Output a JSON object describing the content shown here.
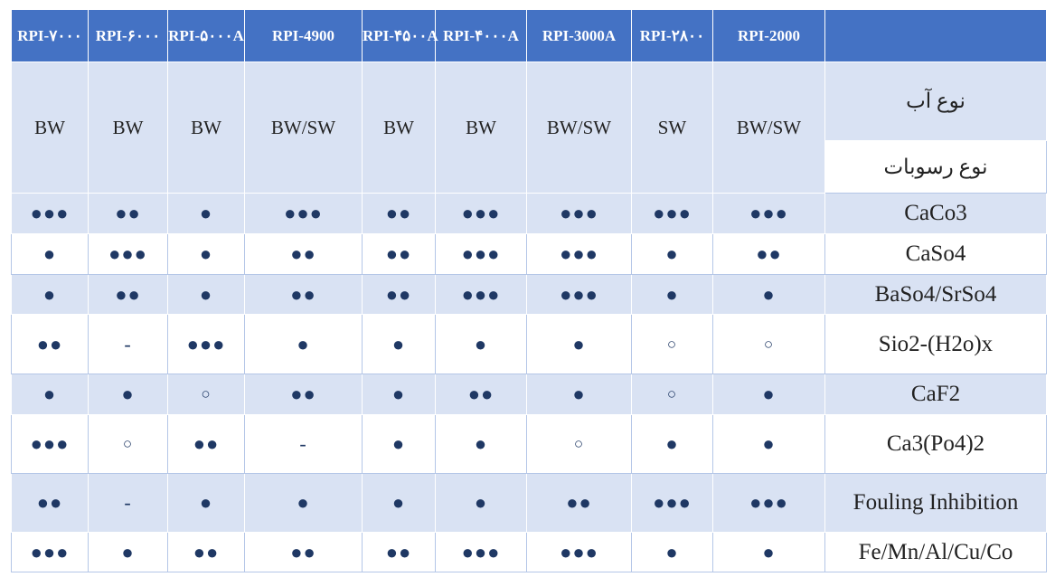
{
  "table": {
    "header": [
      "RPI-۷۰۰۰",
      "RPI-۶۰۰۰",
      "RPI-۵۰۰۰A",
      "RPI-4900",
      "RPI-۴۵۰۰A",
      "RPI-۴۰۰۰A",
      "RPI-3000A",
      "RPI-۲۸۰۰",
      "RPI-2000"
    ],
    "water_label": "نوع آب",
    "sediment_label": "نوع رسوبات",
    "water_types": [
      "BW",
      "BW",
      "BW",
      "BW/SW",
      "BW",
      "BW",
      "BW/SW",
      "SW",
      "BW/SW"
    ],
    "rows": [
      {
        "label": "CaCo3",
        "cells": [
          "●●●",
          "●●",
          "●",
          "●●●",
          "●●",
          "●●●",
          "●●●",
          "●●●",
          "●●●"
        ]
      },
      {
        "label": "CaSo4",
        "cells": [
          "●",
          "●●●",
          "●",
          "●●",
          "●●",
          "●●●",
          "●●●",
          "●",
          "●●"
        ]
      },
      {
        "label": "BaSo4/SrSo4",
        "cells": [
          "●",
          "●●",
          "●",
          "●●",
          "●●",
          "●●●",
          "●●●",
          "●",
          "●"
        ]
      },
      {
        "label": "Sio2-(H2o)x",
        "cells": [
          "●●",
          "-",
          "●●●",
          "●",
          "●",
          "●",
          "●",
          "○",
          "○"
        ]
      },
      {
        "label": "CaF2",
        "cells": [
          "●",
          "●",
          "○",
          "●●",
          "●",
          "●●",
          "●",
          "○",
          "●"
        ]
      },
      {
        "label": "Ca3(Po4)2",
        "cells": [
          "●●●",
          "○",
          "●●",
          "-",
          "●",
          "●",
          "○",
          "●",
          "●"
        ]
      },
      {
        "label": "Fouling Inhibition",
        "cells": [
          "●●",
          "-",
          "●",
          "●",
          "●",
          "●",
          "●●",
          "●●●",
          "●●●"
        ]
      },
      {
        "label": "Fe/Mn/Al/Cu/Co",
        "cells": [
          "●●●",
          "●",
          "●●",
          "●●",
          "●●",
          "●●●",
          "●●●",
          "●",
          "●"
        ]
      }
    ]
  }
}
